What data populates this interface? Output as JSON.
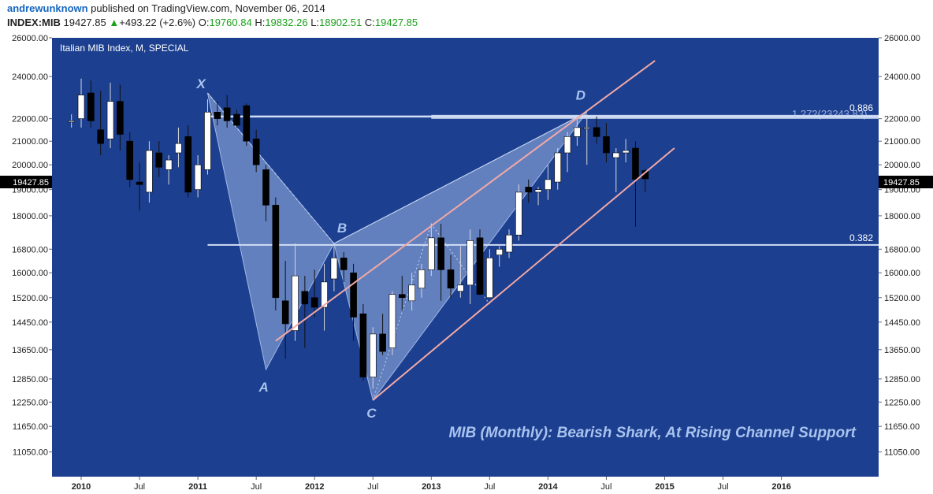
{
  "header": {
    "author": "andrewunknown",
    "published": " published on TradingView.com, November 06, 2014",
    "symbol": "INDEX:MIB",
    "last": "19427.85",
    "change_arrow": "▲",
    "change": "+493.22 (+2.6%)",
    "o_label": "O:",
    "o": "19760.84",
    "h_label": "H:",
    "h": "19832.26",
    "l_label": "L:",
    "l": "18902.51",
    "c_label": "C:",
    "c": "19427.85"
  },
  "colors": {
    "background": "#1c3f8f",
    "up_candle": "#ffffff",
    "down_candle": "#000000",
    "pattern_fill": "#9fb7e6",
    "channel": "#f2a9a6",
    "fib_line": "#d2def5",
    "annotation": "#a9c3ef"
  },
  "chart_data": {
    "type": "candlestick",
    "title": "Italian MIB Index, M, SPECIAL",
    "annotation": "MIB (Monthly): Bearish Shark, At Rising Channel Support",
    "price_tag": "19427.85",
    "y_axis": {
      "ticks": [
        "26000.00",
        "24000.00",
        "22000.00",
        "21000.00",
        "20000.00",
        "19000.00",
        "18000.00",
        "16800.00",
        "16000.00",
        "15200.00",
        "14450.00",
        "13650.00",
        "12850.00",
        "12250.00",
        "11650.00",
        "11050.00"
      ],
      "ylim": [
        10500,
        26000
      ]
    },
    "x_axis": {
      "ticks": [
        "2010",
        "Jul",
        "2011",
        "Jul",
        "2012",
        "Jul",
        "2013",
        "Jul",
        "2014",
        "Jul",
        "2015",
        "Jul",
        "2016"
      ]
    },
    "pattern_points": [
      {
        "label": "X",
        "date": "2011-02",
        "price": 23200
      },
      {
        "label": "A",
        "date": "2011-08",
        "price": 13100
      },
      {
        "label": "B",
        "date": "2012-03",
        "price": 17000
      },
      {
        "label": "C",
        "date": "2012-07",
        "price": 12300
      },
      {
        "label": "D",
        "date": "2014-05",
        "price": 22300
      }
    ],
    "fib_levels": [
      {
        "label": "0.886",
        "price": 22100,
        "overlay": "1.272(23243.83)"
      },
      {
        "label": "0.382",
        "price": 16950
      }
    ],
    "channel": {
      "upper": [
        {
          "date": "2011-09",
          "price": 13900
        },
        {
          "date": "2014-12",
          "price": 24800
        }
      ],
      "lower": [
        {
          "date": "2012-07",
          "price": 12300
        },
        {
          "date": "2015-02",
          "price": 20700
        }
      ]
    },
    "candles": [
      {
        "date": "2009-12",
        "open": 21900,
        "high": 22200,
        "low": 21600,
        "close": 21900
      },
      {
        "date": "2010-01",
        "open": 22000,
        "high": 23900,
        "low": 21600,
        "close": 23100
      },
      {
        "date": "2010-02",
        "open": 23200,
        "high": 23800,
        "low": 21600,
        "close": 21900
      },
      {
        "date": "2010-03",
        "open": 21500,
        "high": 23300,
        "low": 20400,
        "close": 20900
      },
      {
        "date": "2010-04",
        "open": 21100,
        "high": 23700,
        "low": 20700,
        "close": 22800
      },
      {
        "date": "2010-05",
        "open": 22800,
        "high": 23600,
        "low": 20600,
        "close": 21300
      },
      {
        "date": "2010-06",
        "open": 21000,
        "high": 21400,
        "low": 19100,
        "close": 19400
      },
      {
        "date": "2010-07",
        "open": 19300,
        "high": 20100,
        "low": 18200,
        "close": 19200
      },
      {
        "date": "2010-08",
        "open": 18900,
        "high": 21000,
        "low": 18500,
        "close": 20600
      },
      {
        "date": "2010-09",
        "open": 20500,
        "high": 21000,
        "low": 19500,
        "close": 19900
      },
      {
        "date": "2010-10",
        "open": 19800,
        "high": 20400,
        "low": 19200,
        "close": 20200
      },
      {
        "date": "2010-11",
        "open": 20500,
        "high": 21600,
        "low": 19900,
        "close": 20900
      },
      {
        "date": "2010-12",
        "open": 21200,
        "high": 21700,
        "low": 18700,
        "close": 18900
      },
      {
        "date": "2011-01",
        "open": 19000,
        "high": 20400,
        "low": 18700,
        "close": 20000
      },
      {
        "date": "2011-02",
        "open": 19800,
        "high": 22900,
        "low": 19600,
        "close": 22300
      },
      {
        "date": "2011-03",
        "open": 22300,
        "high": 22800,
        "low": 21700,
        "close": 22000
      },
      {
        "date": "2011-04",
        "open": 22500,
        "high": 23100,
        "low": 21600,
        "close": 21900
      },
      {
        "date": "2011-05",
        "open": 22200,
        "high": 22400,
        "low": 21600,
        "close": 21700
      },
      {
        "date": "2011-06",
        "open": 22600,
        "high": 22700,
        "low": 20800,
        "close": 21000
      },
      {
        "date": "2011-07",
        "open": 21100,
        "high": 21500,
        "low": 19700,
        "close": 20000
      },
      {
        "date": "2011-08",
        "open": 19800,
        "high": 20000,
        "low": 17800,
        "close": 18400
      },
      {
        "date": "2011-09",
        "open": 18400,
        "high": 18700,
        "low": 14800,
        "close": 15200
      },
      {
        "date": "2011-10",
        "open": 15100,
        "high": 16400,
        "low": 13400,
        "close": 14400
      },
      {
        "date": "2011-11",
        "open": 14200,
        "high": 17000,
        "low": 13900,
        "close": 15900
      },
      {
        "date": "2011-12",
        "open": 15400,
        "high": 15900,
        "low": 13700,
        "close": 15000
      },
      {
        "date": "2012-01",
        "open": 15200,
        "high": 16100,
        "low": 14600,
        "close": 14900
      },
      {
        "date": "2012-02",
        "open": 14900,
        "high": 16300,
        "low": 14200,
        "close": 15700
      },
      {
        "date": "2012-03",
        "open": 15800,
        "high": 16900,
        "low": 15400,
        "close": 16500
      },
      {
        "date": "2012-04",
        "open": 16500,
        "high": 16700,
        "low": 15700,
        "close": 16100
      },
      {
        "date": "2012-05",
        "open": 16000,
        "high": 16300,
        "low": 13900,
        "close": 14600
      },
      {
        "date": "2012-06",
        "open": 14700,
        "high": 15000,
        "low": 12800,
        "close": 12900
      },
      {
        "date": "2012-07",
        "open": 12900,
        "high": 14300,
        "low": 12600,
        "close": 14100
      },
      {
        "date": "2012-08",
        "open": 14100,
        "high": 14700,
        "low": 13500,
        "close": 13600
      },
      {
        "date": "2012-09",
        "open": 13700,
        "high": 15400,
        "low": 13500,
        "close": 15300
      },
      {
        "date": "2012-10",
        "open": 15300,
        "high": 15900,
        "low": 14800,
        "close": 15200
      },
      {
        "date": "2012-11",
        "open": 15100,
        "high": 16000,
        "low": 14800,
        "close": 15600
      },
      {
        "date": "2012-12",
        "open": 15500,
        "high": 16300,
        "low": 15200,
        "close": 16100
      },
      {
        "date": "2013-01",
        "open": 16100,
        "high": 17700,
        "low": 15900,
        "close": 17200
      },
      {
        "date": "2013-02",
        "open": 17200,
        "high": 17700,
        "low": 15100,
        "close": 16100
      },
      {
        "date": "2013-03",
        "open": 16100,
        "high": 16600,
        "low": 15200,
        "close": 15500
      },
      {
        "date": "2013-04",
        "open": 15400,
        "high": 16900,
        "low": 15200,
        "close": 15600
      },
      {
        "date": "2013-05",
        "open": 15600,
        "high": 17500,
        "low": 15000,
        "close": 17100
      },
      {
        "date": "2013-06",
        "open": 17200,
        "high": 17500,
        "low": 15300,
        "close": 15300
      },
      {
        "date": "2013-07",
        "open": 15200,
        "high": 16800,
        "low": 15200,
        "close": 16500
      },
      {
        "date": "2013-08",
        "open": 16600,
        "high": 16900,
        "low": 16200,
        "close": 16800
      },
      {
        "date": "2013-09",
        "open": 16700,
        "high": 17500,
        "low": 16500,
        "close": 17300
      },
      {
        "date": "2013-10",
        "open": 17300,
        "high": 19200,
        "low": 17100,
        "close": 18900
      },
      {
        "date": "2013-11",
        "open": 19100,
        "high": 19400,
        "low": 18500,
        "close": 18900
      },
      {
        "date": "2013-12",
        "open": 18900,
        "high": 19100,
        "low": 18400,
        "close": 19000
      },
      {
        "date": "2014-01",
        "open": 19000,
        "high": 20000,
        "low": 18600,
        "close": 19400
      },
      {
        "date": "2014-02",
        "open": 19300,
        "high": 20700,
        "low": 19000,
        "close": 20500
      },
      {
        "date": "2014-03",
        "open": 20500,
        "high": 21400,
        "low": 19700,
        "close": 21200
      },
      {
        "date": "2014-04",
        "open": 21200,
        "high": 22100,
        "low": 20800,
        "close": 21600
      },
      {
        "date": "2014-05",
        "open": 21600,
        "high": 22200,
        "low": 20000,
        "close": 21600
      },
      {
        "date": "2014-06",
        "open": 21600,
        "high": 22100,
        "low": 20900,
        "close": 21200
      },
      {
        "date": "2014-07",
        "open": 21200,
        "high": 21800,
        "low": 20100,
        "close": 20500
      },
      {
        "date": "2014-08",
        "open": 20300,
        "high": 20700,
        "low": 18900,
        "close": 20500
      },
      {
        "date": "2014-09",
        "open": 20500,
        "high": 21100,
        "low": 20100,
        "close": 20600
      },
      {
        "date": "2014-10",
        "open": 20700,
        "high": 21000,
        "low": 17600,
        "close": 19400
      },
      {
        "date": "2014-11",
        "open": 19760.84,
        "high": 19832.26,
        "low": 18902.51,
        "close": 19427.85
      }
    ]
  }
}
